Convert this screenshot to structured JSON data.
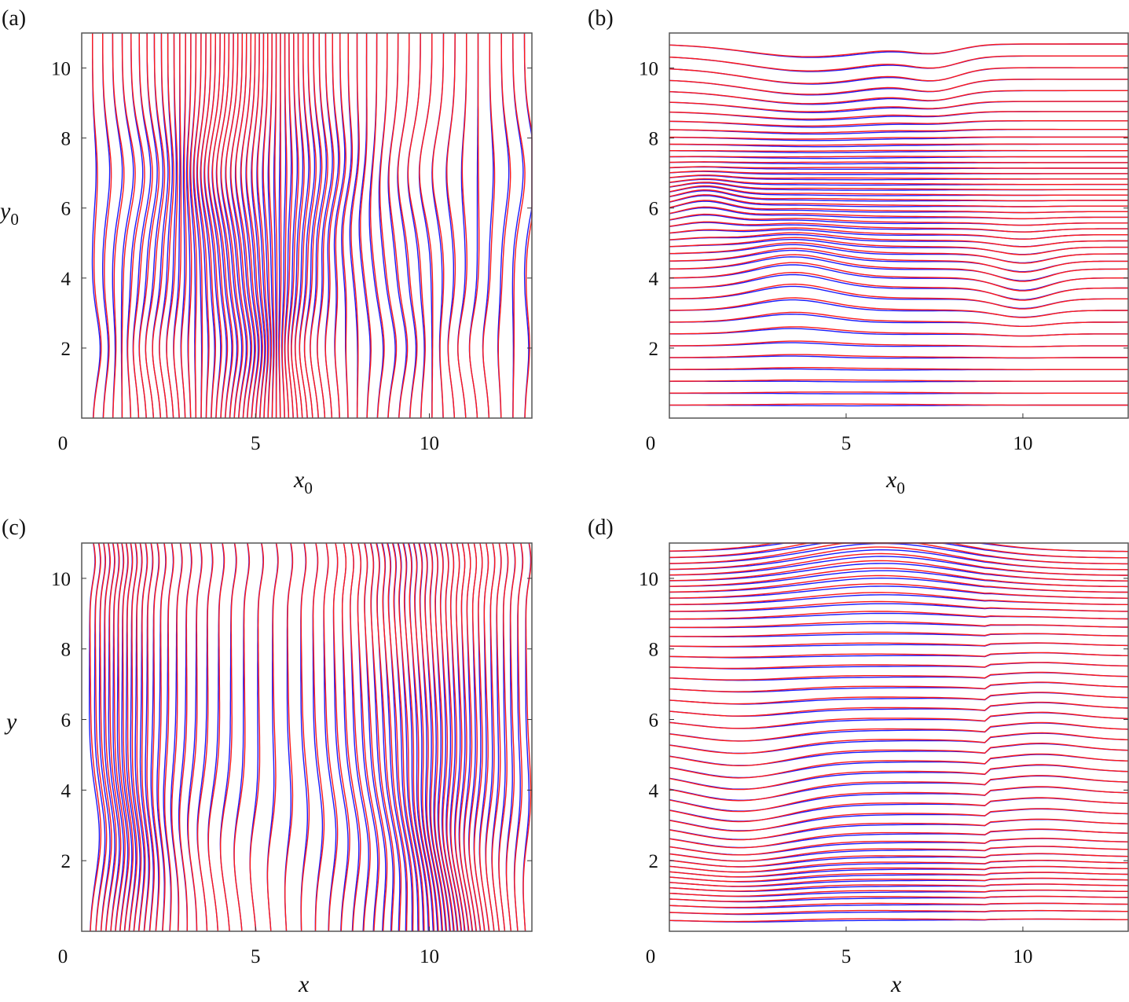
{
  "colors": {
    "blue": "#1a1aff",
    "red": "#ff1a1a",
    "frame": "#555555"
  },
  "chart_data": [
    {
      "panel": "(a)",
      "type": "line",
      "orientation": "vertical",
      "xlim": [
        0,
        12.95
      ],
      "ylim": [
        0,
        11
      ],
      "xticks": [
        "0",
        "5",
        "10"
      ],
      "yticks": [
        "2",
        "4",
        "6",
        "8",
        "10"
      ],
      "xlabel": "x",
      "xlabel_sub": "0",
      "ylabel": "y",
      "ylabel_sub": "0",
      "line_count": 62,
      "series": [
        {
          "color": "#1a1aff"
        },
        {
          "color": "#ff1a1a"
        }
      ]
    },
    {
      "panel": "(b)",
      "type": "line",
      "orientation": "horizontal",
      "xlim": [
        0,
        12.98
      ],
      "ylim": [
        0,
        11
      ],
      "xticks": [
        "0",
        "5",
        "10"
      ],
      "yticks": [
        "2",
        "4",
        "6",
        "8",
        "10"
      ],
      "xlabel": "x",
      "xlabel_sub": "0",
      "ylabel": "",
      "ylabel_sub": "",
      "line_count": 44,
      "series": [
        {
          "color": "#1a1aff"
        },
        {
          "color": "#ff1a1a"
        }
      ]
    },
    {
      "panel": "(c)",
      "type": "line",
      "orientation": "vertical",
      "xlim": [
        0,
        12.95
      ],
      "ylim": [
        0,
        11
      ],
      "xticks": [
        "0",
        "5",
        "10"
      ],
      "yticks": [
        "2",
        "4",
        "6",
        "8",
        "10"
      ],
      "xlabel": "x",
      "xlabel_sub": "",
      "ylabel": "y",
      "ylabel_sub": "",
      "line_count": 62,
      "series": [
        {
          "color": "#1a1aff"
        },
        {
          "color": "#ff1a1a"
        }
      ]
    },
    {
      "panel": "(d)",
      "type": "line",
      "orientation": "horizontal",
      "xlim": [
        0,
        12.98
      ],
      "ylim": [
        0,
        11
      ],
      "xticks": [
        "0",
        "5",
        "10"
      ],
      "yticks": [
        "2",
        "4",
        "6",
        "8",
        "10"
      ],
      "xlabel": "x",
      "xlabel_sub": "",
      "ylabel": "",
      "ylabel_sub": "",
      "line_count": 46,
      "series": [
        {
          "color": "#1a1aff"
        },
        {
          "color": "#ff1a1a"
        }
      ]
    }
  ]
}
